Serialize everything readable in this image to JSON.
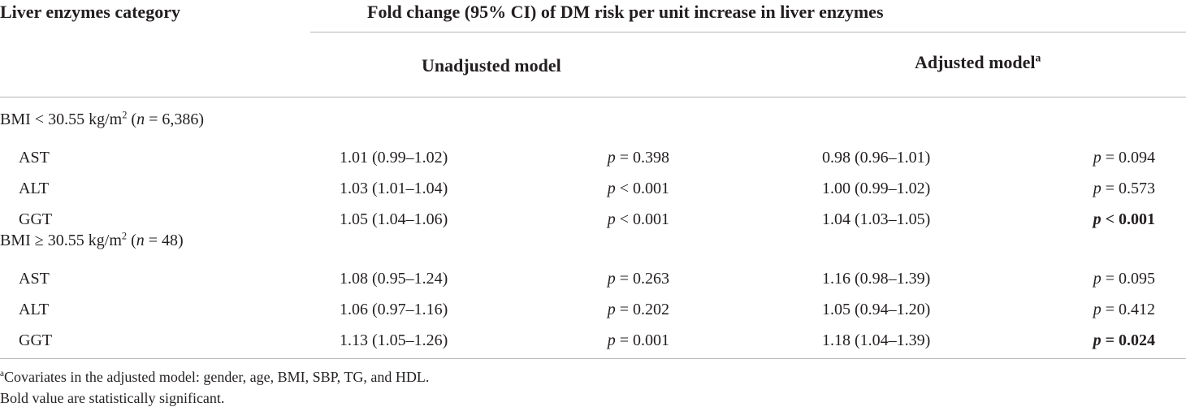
{
  "table": {
    "col_category_header": "Liver enzymes category",
    "fold_change_header": "Fold change (95% CI) of DM risk per unit increase in liver enzymes",
    "unadjusted_header": "Unadjusted model",
    "adjusted_header": "Adjusted model",
    "adjusted_sup": "a",
    "groups": [
      {
        "label_pre": "BMI < 30.55 kg/m",
        "label_sup": "2",
        "label_open": " (",
        "label_n": "n",
        "label_rest": " = 6,386)",
        "rows": [
          {
            "enzyme": "AST",
            "unadj_ci": "1.01 (0.99–1.02)",
            "unadj_p_sym": "p",
            "unadj_p_val": " = 0.398",
            "adj_ci": "0.98 (0.96–1.01)",
            "adj_p_sym": "p",
            "adj_p_val": " = 0.094",
            "adj_bold": false
          },
          {
            "enzyme": "ALT",
            "unadj_ci": "1.03 (1.01–1.04)",
            "unadj_p_sym": "p",
            "unadj_p_val": " < 0.001",
            "adj_ci": "1.00 (0.99–1.02)",
            "adj_p_sym": "p",
            "adj_p_val": " = 0.573",
            "adj_bold": false
          },
          {
            "enzyme": "GGT",
            "unadj_ci": "1.05 (1.04–1.06)",
            "unadj_p_sym": "p",
            "unadj_p_val": " < 0.001",
            "adj_ci": "1.04 (1.03–1.05)",
            "adj_p_sym": "p",
            "adj_p_val": " < 0.001",
            "adj_bold": true
          }
        ]
      },
      {
        "label_pre": "BMI ≥ 30.55 kg/m",
        "label_sup": "2",
        "label_open": " (",
        "label_n": "n",
        "label_rest": " = 48)",
        "rows": [
          {
            "enzyme": "AST",
            "unadj_ci": "1.08 (0.95–1.24)",
            "unadj_p_sym": "p",
            "unadj_p_val": " = 0.263",
            "adj_ci": "1.16 (0.98–1.39)",
            "adj_p_sym": "p",
            "adj_p_val": " = 0.095",
            "adj_bold": false
          },
          {
            "enzyme": "ALT",
            "unadj_ci": "1.06 (0.97–1.16)",
            "unadj_p_sym": "p",
            "unadj_p_val": " = 0.202",
            "adj_ci": "1.05 (0.94–1.20)",
            "adj_p_sym": "p",
            "adj_p_val": " = 0.412",
            "adj_bold": false
          },
          {
            "enzyme": "GGT",
            "unadj_ci": "1.13 (1.05–1.26)",
            "unadj_p_sym": "p",
            "unadj_p_val": " = 0.001",
            "adj_ci": "1.18 (1.04–1.39)",
            "adj_p_sym": "p",
            "adj_p_val": " = 0.024",
            "adj_bold": true
          }
        ]
      }
    ]
  },
  "footnotes": {
    "note_sup": "a",
    "note_text": "Covariates in the adjusted model: gender, age, BMI, SBP, TG, and HDL.",
    "bold_note": "Bold value are statistically significant."
  }
}
